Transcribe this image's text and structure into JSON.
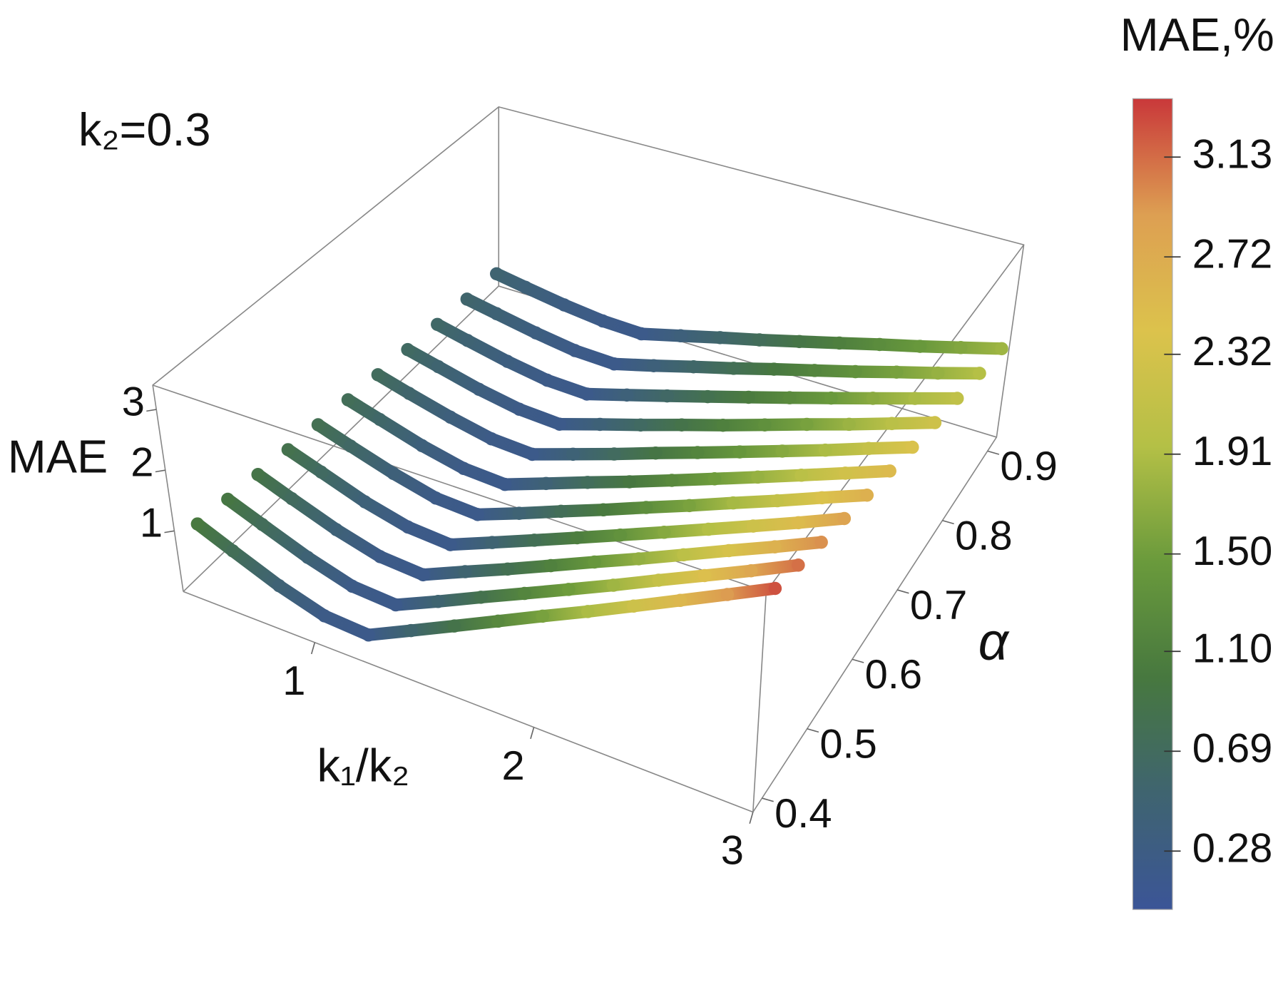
{
  "chart_data": {
    "type": "scatter3d",
    "title": "k₂=0.3",
    "x_label": "k₁/k₂",
    "y_label": "α",
    "z_label": "MAE",
    "colorbar_label": "MAE,%",
    "x": [
      0.45,
      0.6,
      0.8,
      1.0,
      1.2,
      1.4,
      1.6,
      1.8,
      2.0,
      2.2,
      2.4,
      2.6,
      2.8,
      3.0
    ],
    "series": [
      {
        "alpha": 0.4,
        "values": [
          1.0,
          0.76,
          0.46,
          0.24,
          0.2,
          0.54,
          0.88,
          1.22,
          1.56,
          1.89,
          2.23,
          2.57,
          2.91,
          3.25
        ]
      },
      {
        "alpha": 0.45,
        "values": [
          0.95,
          0.73,
          0.45,
          0.24,
          0.2,
          0.52,
          0.85,
          1.17,
          1.49,
          1.81,
          2.14,
          2.46,
          2.78,
          3.11
        ]
      },
      {
        "alpha": 0.5,
        "values": [
          0.9,
          0.69,
          0.43,
          0.24,
          0.2,
          0.51,
          0.81,
          1.12,
          1.43,
          1.73,
          2.04,
          2.35,
          2.65,
          2.96
        ]
      },
      {
        "alpha": 0.55,
        "values": [
          0.85,
          0.66,
          0.41,
          0.24,
          0.2,
          0.49,
          0.78,
          1.07,
          1.36,
          1.65,
          1.94,
          2.23,
          2.52,
          2.82
        ]
      },
      {
        "alpha": 0.6,
        "values": [
          0.8,
          0.62,
          0.4,
          0.23,
          0.2,
          0.47,
          0.75,
          1.02,
          1.3,
          1.57,
          1.85,
          2.12,
          2.4,
          2.67
        ]
      },
      {
        "alpha": 0.65,
        "values": [
          0.75,
          0.59,
          0.38,
          0.23,
          0.2,
          0.46,
          0.72,
          0.97,
          1.23,
          1.49,
          1.75,
          2.01,
          2.27,
          2.53
        ]
      },
      {
        "alpha": 0.7,
        "values": [
          0.7,
          0.55,
          0.37,
          0.23,
          0.2,
          0.44,
          0.68,
          0.93,
          1.17,
          1.41,
          1.65,
          1.89,
          2.14,
          2.38
        ]
      },
      {
        "alpha": 0.75,
        "values": [
          0.65,
          0.52,
          0.35,
          0.23,
          0.2,
          0.43,
          0.65,
          0.88,
          1.1,
          1.33,
          1.56,
          1.78,
          2.01,
          2.24
        ]
      },
      {
        "alpha": 0.8,
        "values": [
          0.6,
          0.48,
          0.33,
          0.22,
          0.2,
          0.41,
          0.62,
          0.83,
          1.04,
          1.25,
          1.46,
          1.67,
          1.88,
          2.09
        ]
      },
      {
        "alpha": 0.85,
        "values": [
          0.55,
          0.45,
          0.32,
          0.22,
          0.2,
          0.39,
          0.59,
          0.78,
          0.98,
          1.17,
          1.36,
          1.56,
          1.75,
          1.95
        ]
      },
      {
        "alpha": 0.9,
        "values": [
          0.5,
          0.41,
          0.3,
          0.22,
          0.2,
          0.38,
          0.56,
          0.73,
          0.91,
          1.09,
          1.27,
          1.44,
          1.62,
          1.8
        ]
      }
    ],
    "xlim": [
      0.4,
      3
    ],
    "ylim": [
      0.38,
      0.92
    ],
    "zlim": [
      0,
      3.4
    ],
    "xticks": [
      1,
      2,
      3
    ],
    "yticks": [
      0.4,
      0.5,
      0.6,
      0.7,
      0.8,
      0.9
    ],
    "zticks": [
      1,
      2,
      3
    ],
    "clim": [
      0.04,
      3.37
    ],
    "cticks": [
      0.28,
      0.69,
      {
        "value": 1.1,
        "label": "1.10"
      },
      {
        "value": 1.5,
        "label": "1.50"
      },
      1.91,
      2.32,
      2.72,
      3.13
    ],
    "colormap": [
      "#3b5597",
      "#3f6470",
      "#47783f",
      "#6a9a3c",
      "#b4c046",
      "#dcc24c",
      "#dd9f52",
      "#c9383a"
    ]
  }
}
